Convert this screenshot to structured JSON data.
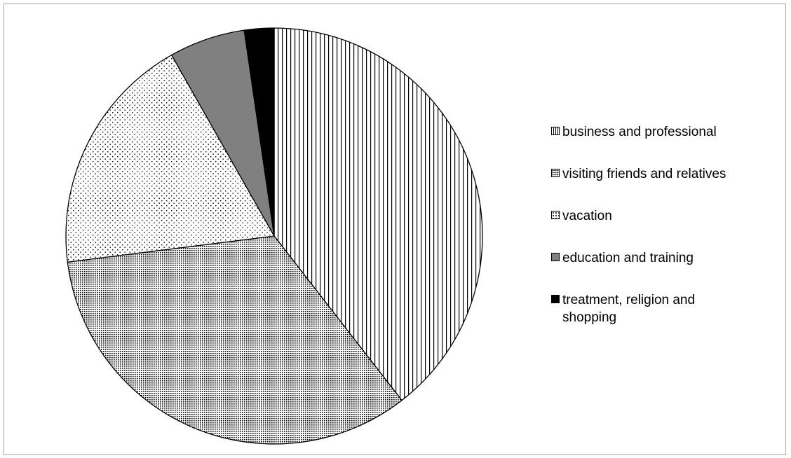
{
  "chart_data": {
    "type": "pie",
    "title": "",
    "start": "top, clockwise",
    "slices": [
      {
        "label": "business and professional",
        "value": 39.5,
        "fill": "vertical-lines"
      },
      {
        "label": "visiting friends and relatives",
        "value": 33.5,
        "fill": "dense-dots"
      },
      {
        "label": "vacation",
        "value": 18.8,
        "fill": "sparse-dots"
      },
      {
        "label": "education and training",
        "value": 5.9,
        "fill": "#808080"
      },
      {
        "label": "treatment, religion and shopping",
        "value": 2.3,
        "fill": "#000000"
      }
    ],
    "legend": {
      "position": "right"
    }
  }
}
